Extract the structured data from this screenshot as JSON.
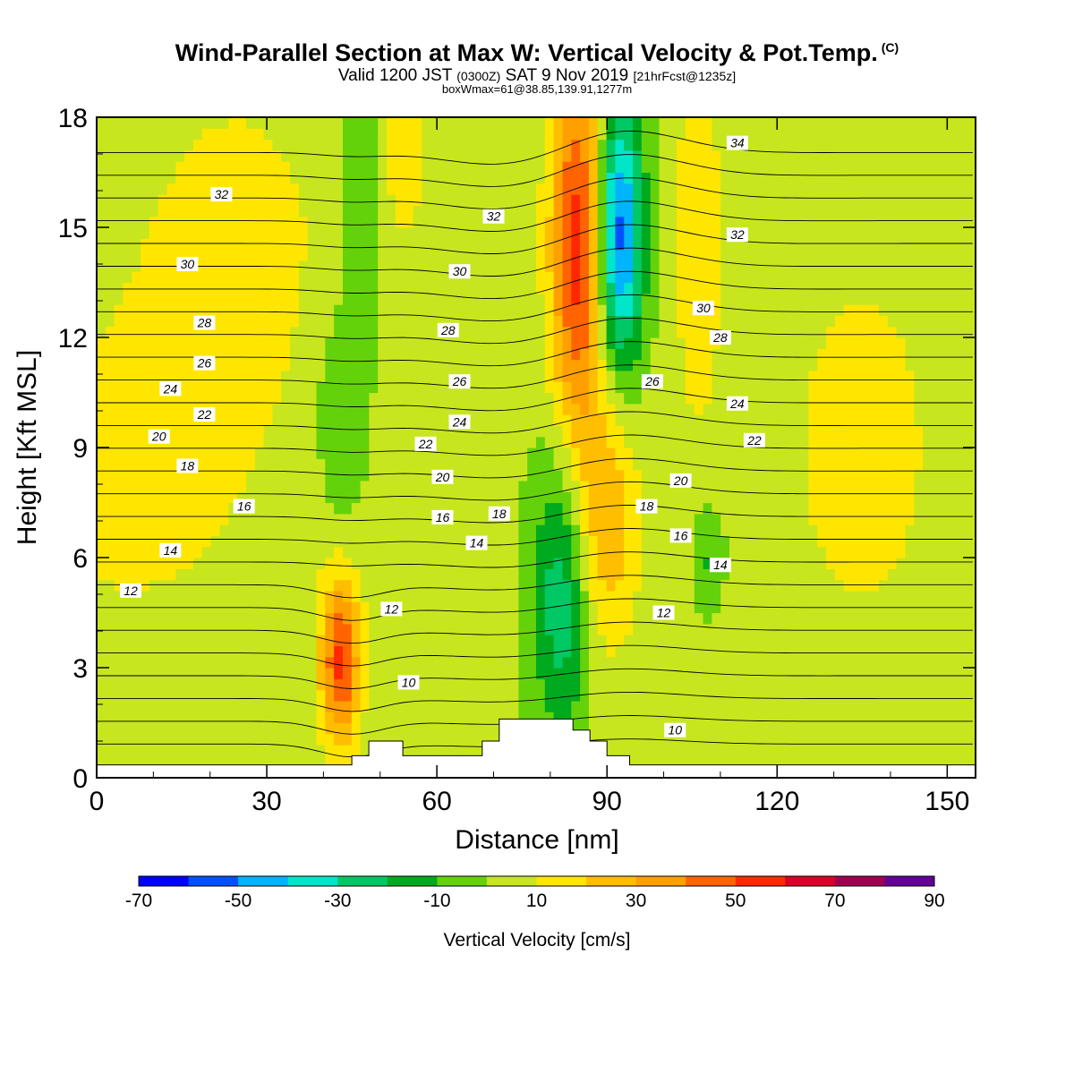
{
  "titles": {
    "main": "Wind-Parallel Section at Max W: Vertical Velocity & Pot.Temp.",
    "copyright": "(C)",
    "valid_prefix": "Valid 1200 JST",
    "valid_utc": "(0300Z)",
    "valid_date": "SAT 9 Nov 2019",
    "forecast": "[21hrFcst@1235z]",
    "box": "boxWmax=61@38.85,139.91,1277m"
  },
  "chart_data": {
    "type": "heatmap",
    "title": "Wind-Parallel Section at Max W: Vertical Velocity & Pot.Temp.",
    "xlabel": "Distance [nm]",
    "ylabel": "Height [Kft MSL]",
    "xlim": [
      0,
      155
    ],
    "ylim": [
      0,
      18
    ],
    "x_ticks": [
      0,
      30,
      60,
      90,
      120,
      150
    ],
    "y_ticks": [
      0,
      3,
      6,
      9,
      12,
      15,
      18
    ],
    "colorbar": {
      "label": "Vertical Velocity [cm/s]",
      "bounds": [
        -70,
        -60,
        -50,
        -40,
        -30,
        -20,
        -10,
        0,
        10,
        20,
        30,
        40,
        50,
        60,
        70,
        80,
        90
      ],
      "tick_labels": [
        "-70",
        "-50",
        "-30",
        "-10",
        "10",
        "30",
        "50",
        "70",
        "90"
      ],
      "colors": [
        "#0000ff",
        "#0050ff",
        "#00b4ff",
        "#00e6c8",
        "#00c864",
        "#00aa1e",
        "#64d20a",
        "#c8e61e",
        "#ffe600",
        "#ffbe00",
        "#ffa000",
        "#ff6400",
        "#ff2800",
        "#dc0028",
        "#a00050",
        "#640096"
      ]
    },
    "fields": {
      "background_w": 2,
      "features": [
        {
          "x": 85,
          "z": 14.5,
          "sx": 3.5,
          "sz": 3.8,
          "w": 55
        },
        {
          "x": 92,
          "z": 14.8,
          "sx": 3,
          "sz": 2.6,
          "w": -60
        },
        {
          "x": 43,
          "z": 3.2,
          "sx": 2.5,
          "sz": 1.6,
          "w": 50
        },
        {
          "x": 82,
          "z": 5.0,
          "sx": 3.5,
          "sz": 2.8,
          "w": -30
        },
        {
          "x": 90,
          "z": 7.0,
          "sx": 4,
          "sz": 2.5,
          "w": 25
        },
        {
          "x": 106,
          "z": 15,
          "sx": 3,
          "sz": 4,
          "w": 15
        },
        {
          "x": 54,
          "z": 17.5,
          "sx": 3,
          "sz": 2,
          "w": 15
        },
        {
          "x": 47,
          "z": 16,
          "sx": 2.5,
          "sz": 3,
          "w": -15
        },
        {
          "x": 43,
          "z": 10,
          "sx": 3,
          "sz": 2,
          "w": -15
        },
        {
          "x": 108,
          "z": 6,
          "sx": 2,
          "sz": 1,
          "w": -15
        },
        {
          "x": 5,
          "z": 8,
          "sx": 20,
          "sz": 4,
          "w": 10
        },
        {
          "x": 25,
          "z": 15,
          "sx": 15,
          "sz": 4,
          "w": 10
        },
        {
          "x": 135,
          "z": 9,
          "sx": 15,
          "sz": 6,
          "w": 10
        }
      ]
    },
    "pot_temp_labels": [
      {
        "x": 22,
        "z": 15.9,
        "t": "32"
      },
      {
        "x": 70,
        "z": 15.3,
        "t": "32"
      },
      {
        "x": 113,
        "z": 17.3,
        "t": "34"
      },
      {
        "x": 113,
        "z": 14.8,
        "t": "32"
      },
      {
        "x": 16,
        "z": 14.0,
        "t": "30"
      },
      {
        "x": 64,
        "z": 13.8,
        "t": "30"
      },
      {
        "x": 107,
        "z": 12.8,
        "t": "30"
      },
      {
        "x": 19,
        "z": 12.4,
        "t": "28"
      },
      {
        "x": 62,
        "z": 12.2,
        "t": "28"
      },
      {
        "x": 110,
        "z": 12.0,
        "t": "28"
      },
      {
        "x": 19,
        "z": 11.3,
        "t": "26"
      },
      {
        "x": 64,
        "z": 10.8,
        "t": "26"
      },
      {
        "x": 98,
        "z": 10.8,
        "t": "26"
      },
      {
        "x": 13,
        "z": 10.6,
        "t": "24"
      },
      {
        "x": 64,
        "z": 9.7,
        "t": "24"
      },
      {
        "x": 113,
        "z": 10.2,
        "t": "24"
      },
      {
        "x": 19,
        "z": 9.9,
        "t": "22"
      },
      {
        "x": 58,
        "z": 9.1,
        "t": "22"
      },
      {
        "x": 116,
        "z": 9.2,
        "t": "22"
      },
      {
        "x": 11,
        "z": 9.3,
        "t": "20"
      },
      {
        "x": 61,
        "z": 8.2,
        "t": "20"
      },
      {
        "x": 103,
        "z": 8.1,
        "t": "20"
      },
      {
        "x": 16,
        "z": 8.5,
        "t": "18"
      },
      {
        "x": 71,
        "z": 7.2,
        "t": "18"
      },
      {
        "x": 97,
        "z": 7.4,
        "t": "18"
      },
      {
        "x": 26,
        "z": 7.4,
        "t": "16"
      },
      {
        "x": 61,
        "z": 7.1,
        "t": "16"
      },
      {
        "x": 103,
        "z": 6.6,
        "t": "16"
      },
      {
        "x": 13,
        "z": 6.2,
        "t": "14"
      },
      {
        "x": 67,
        "z": 6.4,
        "t": "14"
      },
      {
        "x": 110,
        "z": 5.8,
        "t": "14"
      },
      {
        "x": 6,
        "z": 5.1,
        "t": "12"
      },
      {
        "x": 52,
        "z": 4.6,
        "t": "12"
      },
      {
        "x": 100,
        "z": 4.5,
        "t": "12"
      },
      {
        "x": 55,
        "z": 2.6,
        "t": "10"
      },
      {
        "x": 102,
        "z": 1.3,
        "t": "10"
      }
    ],
    "terrain": [
      [
        0,
        0.35
      ],
      [
        45,
        0.35
      ],
      [
        45,
        0.6
      ],
      [
        48,
        0.6
      ],
      [
        48,
        1.0
      ],
      [
        54,
        1.0
      ],
      [
        54,
        0.6
      ],
      [
        68,
        0.6
      ],
      [
        68,
        1.0
      ],
      [
        71,
        1.0
      ],
      [
        71,
        1.6
      ],
      [
        84,
        1.6
      ],
      [
        84,
        1.3
      ],
      [
        87,
        1.3
      ],
      [
        87,
        1.0
      ],
      [
        90,
        1.0
      ],
      [
        90,
        0.6
      ],
      [
        94,
        0.6
      ],
      [
        94,
        0.35
      ],
      [
        155,
        0.35
      ]
    ]
  }
}
